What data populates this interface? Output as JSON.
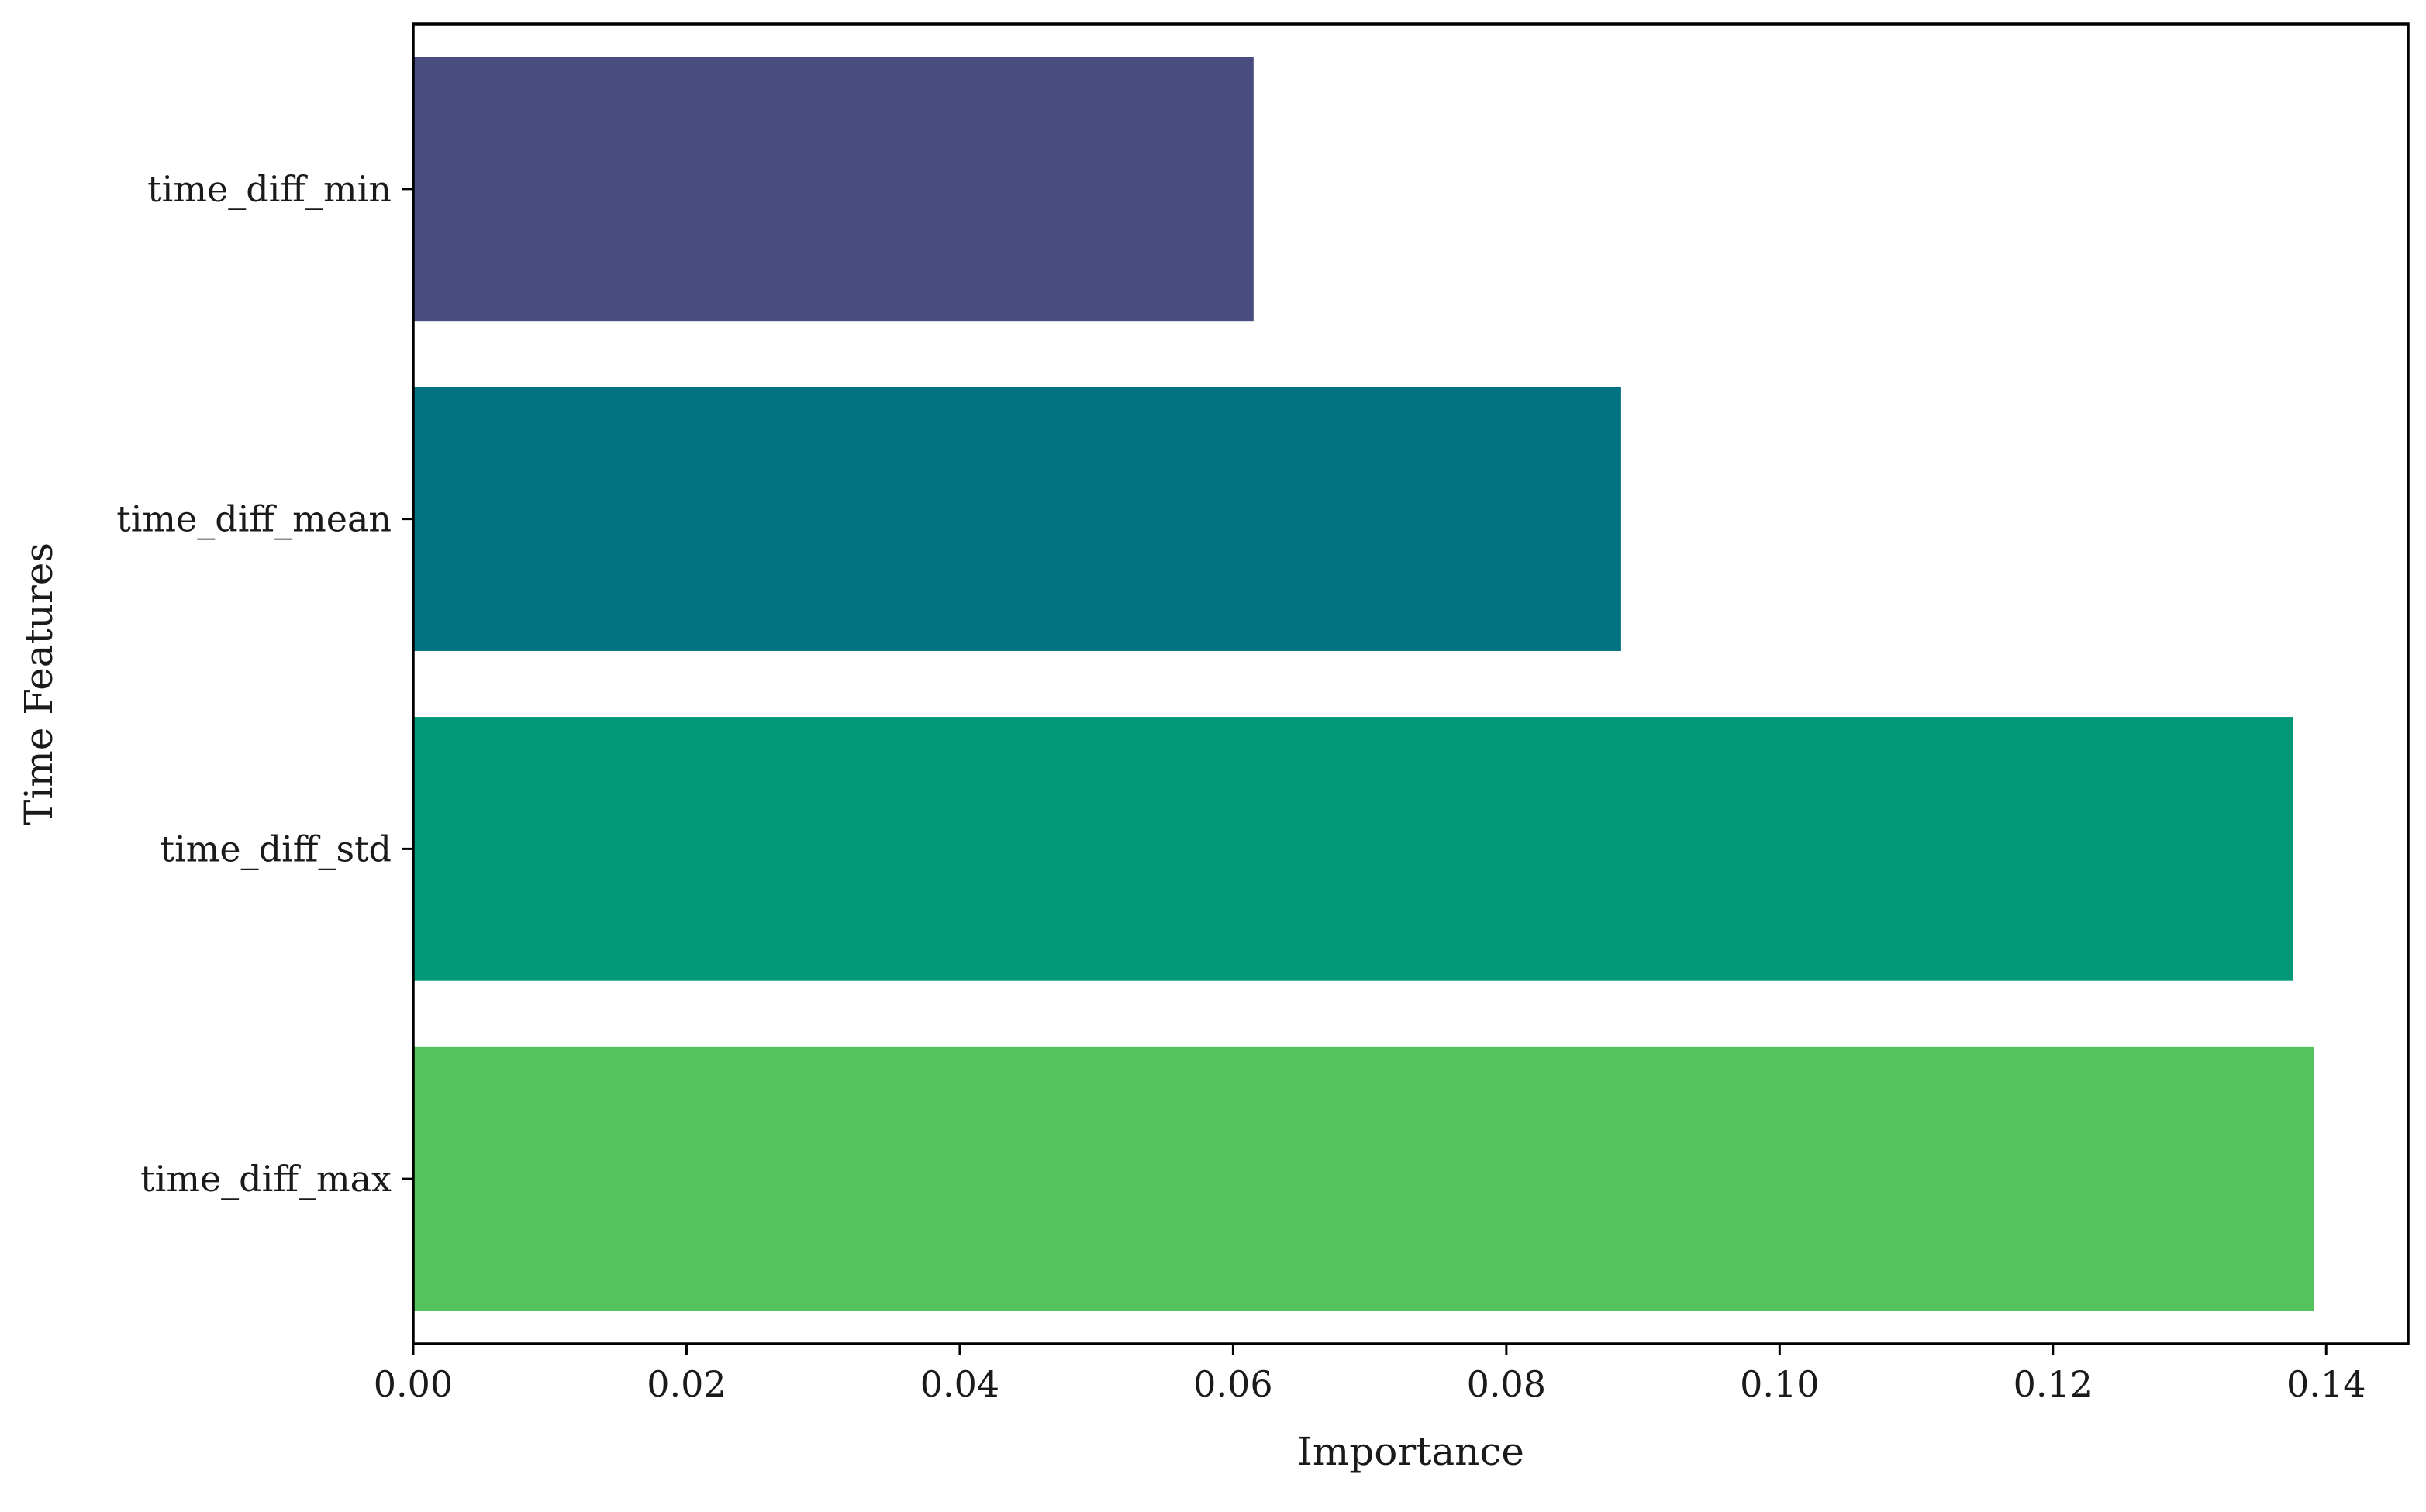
{
  "chart_data": {
    "type": "bar",
    "orientation": "horizontal",
    "title": "",
    "xlabel": "Importance",
    "ylabel": "Time Features",
    "xlim": [
      0,
      0.146
    ],
    "x_ticks": [
      "0.00",
      "0.02",
      "0.04",
      "0.06",
      "0.08",
      "0.10",
      "0.12",
      "0.14"
    ],
    "x_tick_values": [
      0,
      0.02,
      0.04,
      0.06,
      0.08,
      0.1,
      0.12,
      0.14
    ],
    "categories": [
      "time_diff_min",
      "time_diff_mean",
      "time_diff_std",
      "time_diff_max"
    ],
    "values": [
      0.0615,
      0.0884,
      0.1376,
      0.1391
    ],
    "colors": [
      "#484c7f",
      "#007282",
      "#01987a",
      "#55c35d"
    ],
    "grid": false,
    "legend": "none"
  }
}
